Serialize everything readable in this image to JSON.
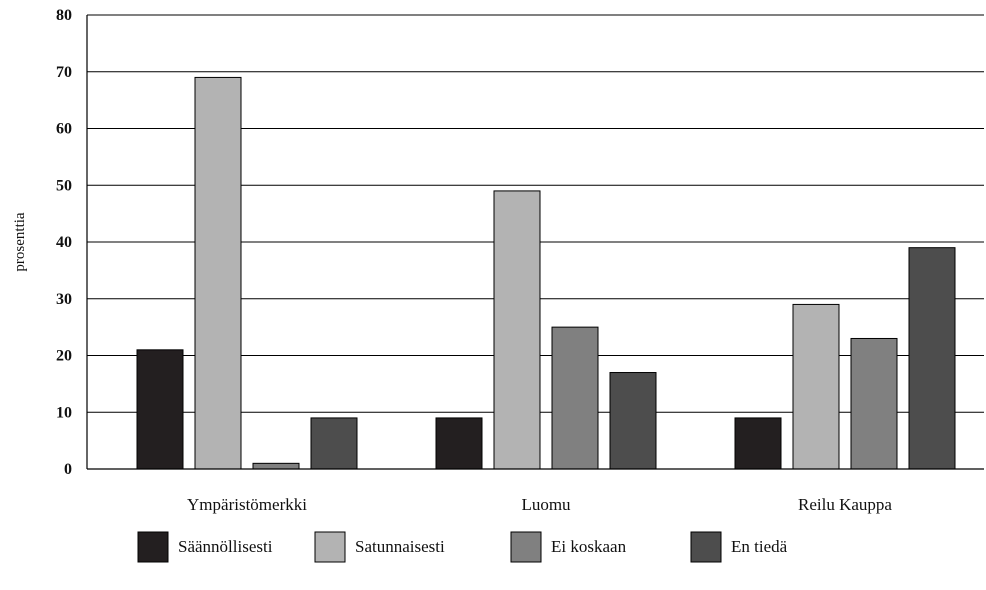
{
  "chart_data": {
    "type": "bar",
    "title": "",
    "xlabel": "",
    "ylabel": "prosenttia",
    "ylim": [
      0,
      80
    ],
    "yticks": [
      0,
      10,
      20,
      30,
      40,
      50,
      60,
      70,
      80
    ],
    "grid": true,
    "legend_position": "bottom",
    "categories": [
      "Ympäristömerkki",
      "Luomu",
      "Reilu Kauppa"
    ],
    "series": [
      {
        "name": "Säännöllisesti",
        "color": "#231f20",
        "values": [
          21,
          9,
          9
        ]
      },
      {
        "name": "Satunnaisesti",
        "color": "#b3b3b3",
        "values": [
          69,
          49,
          29
        ]
      },
      {
        "name": "Ei koskaan",
        "color": "#808080",
        "values": [
          1,
          25,
          23
        ]
      },
      {
        "name": "En tiedä",
        "color": "#4d4d4d",
        "values": [
          9,
          17,
          39
        ]
      }
    ]
  }
}
